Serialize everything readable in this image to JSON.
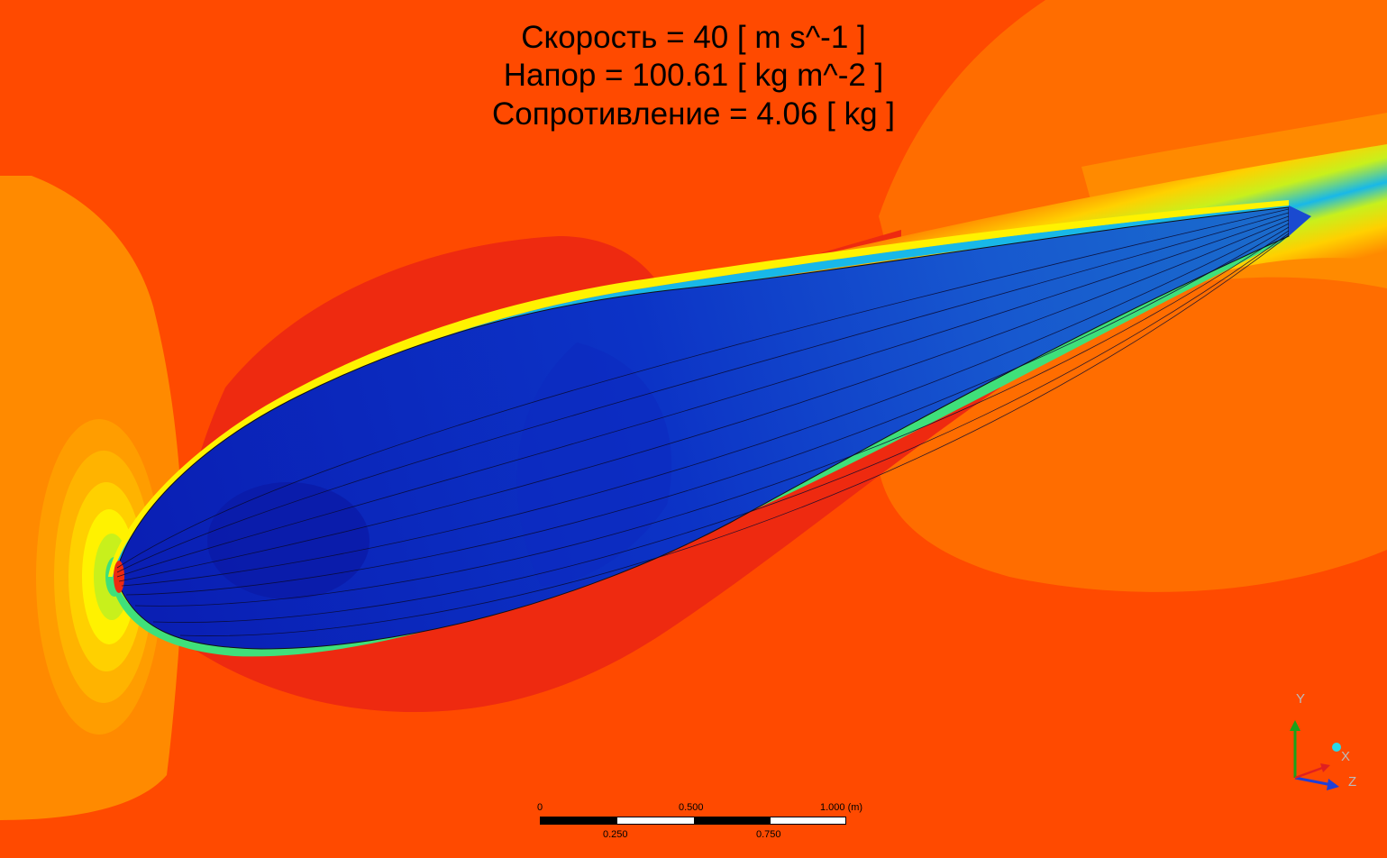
{
  "annotation": {
    "speed": "Скорость = 40 [ m s^-1 ]",
    "pressure": "Напор = 100.61 [ kg m^-2 ]",
    "drag": "Сопротивление = 4.06 [ kg ]"
  },
  "scale": {
    "top_ticks": [
      "0",
      "0.500",
      "1.000  (m)"
    ],
    "bottom_ticks": [
      "0.250",
      "0.750"
    ]
  },
  "triad": {
    "y_label": "Y",
    "x_label": "X",
    "z_label": "Z",
    "colors": {
      "y": "#1aa31a",
      "x": "#e02020",
      "z": "#1f3fd8"
    }
  },
  "colormap": [
    "#0a1fb4",
    "#1560e0",
    "#18b8e8",
    "#3fe07a",
    "#c8f01c",
    "#fff200",
    "#ffb300",
    "#ff8a00",
    "#ff4a00",
    "#ee2a10"
  ]
}
